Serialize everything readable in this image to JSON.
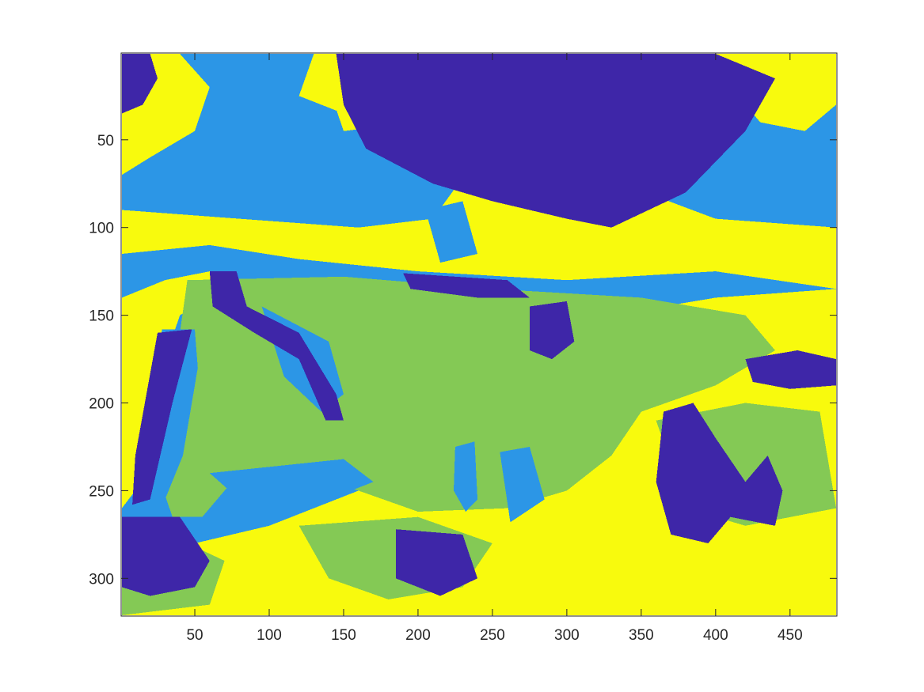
{
  "chart_data": {
    "type": "heatmap",
    "title": "",
    "xlabel": "",
    "ylabel": "",
    "xlim": [
      0.5,
      481.5
    ],
    "ylim": [
      0.5,
      321.5
    ],
    "y_direction": "reverse",
    "x_ticks": [
      50,
      100,
      150,
      200,
      250,
      300,
      350,
      400,
      450
    ],
    "x_tick_labels": [
      "50",
      "100",
      "150",
      "200",
      "250",
      "300",
      "350",
      "400",
      "450"
    ],
    "y_ticks": [
      50,
      100,
      150,
      200,
      250,
      300
    ],
    "y_tick_labels": [
      "50",
      "100",
      "150",
      "200",
      "250",
      "300"
    ],
    "n_classes": 4,
    "class_colors": [
      "#3e26a8",
      "#2c96e6",
      "#84c955",
      "#f8fa0d"
    ],
    "approx_regions": [
      {
        "class": 2,
        "points": [
          [
            1,
            1
          ],
          [
            481,
            1
          ],
          [
            481,
            321
          ],
          [
            1,
            321
          ]
        ]
      },
      {
        "class": 4,
        "points": [
          [
            1,
            1
          ],
          [
            40,
            1
          ],
          [
            60,
            20
          ],
          [
            50,
            45
          ],
          [
            20,
            60
          ],
          [
            1,
            70
          ]
        ]
      },
      {
        "class": 4,
        "points": [
          [
            130,
            1
          ],
          [
            200,
            1
          ],
          [
            210,
            30
          ],
          [
            150,
            35
          ],
          [
            120,
            25
          ]
        ]
      },
      {
        "class": 4,
        "points": [
          [
            140,
            20
          ],
          [
            250,
            20
          ],
          [
            290,
            60
          ],
          [
            400,
            95
          ],
          [
            481,
            100
          ],
          [
            481,
            135
          ],
          [
            400,
            125
          ],
          [
            300,
            130
          ],
          [
            200,
            125
          ],
          [
            120,
            118
          ],
          [
            60,
            110
          ],
          [
            1,
            115
          ],
          [
            1,
            90
          ],
          [
            80,
            95
          ],
          [
            160,
            100
          ],
          [
            210,
            95
          ],
          [
            240,
            60
          ],
          [
            200,
            40
          ],
          [
            150,
            45
          ]
        ]
      },
      {
        "class": 4,
        "points": [
          [
            400,
            1
          ],
          [
            481,
            1
          ],
          [
            481,
            30
          ],
          [
            460,
            45
          ],
          [
            430,
            40
          ],
          [
            410,
            20
          ]
        ]
      },
      {
        "class": 4,
        "points": [
          [
            1,
            140
          ],
          [
            30,
            130
          ],
          [
            60,
            125
          ],
          [
            70,
            135
          ],
          [
            40,
            150
          ],
          [
            20,
            200
          ],
          [
            10,
            250
          ],
          [
            1,
            260
          ]
        ]
      },
      {
        "class": 4,
        "points": [
          [
            330,
            150
          ],
          [
            400,
            140
          ],
          [
            481,
            135
          ],
          [
            481,
            321
          ],
          [
            1,
            321
          ],
          [
            1,
            290
          ],
          [
            50,
            280
          ],
          [
            100,
            270
          ],
          [
            160,
            250
          ],
          [
            230,
            230
          ],
          [
            290,
            210
          ],
          [
            330,
            170
          ]
        ]
      },
      {
        "class": 3,
        "points": [
          [
            45,
            130
          ],
          [
            150,
            128
          ],
          [
            250,
            135
          ],
          [
            350,
            140
          ],
          [
            420,
            150
          ],
          [
            440,
            170
          ],
          [
            400,
            190
          ],
          [
            350,
            205
          ],
          [
            330,
            230
          ],
          [
            300,
            250
          ],
          [
            260,
            260
          ],
          [
            200,
            262
          ],
          [
            160,
            250
          ],
          [
            120,
            240
          ],
          [
            80,
            240
          ],
          [
            55,
            265
          ],
          [
            35,
            265
          ],
          [
            25,
            240
          ],
          [
            35,
            200
          ],
          [
            40,
            160
          ]
        ]
      },
      {
        "class": 3,
        "points": [
          [
            120,
            270
          ],
          [
            200,
            265
          ],
          [
            250,
            280
          ],
          [
            230,
            305
          ],
          [
            180,
            312
          ],
          [
            140,
            300
          ]
        ]
      },
      {
        "class": 3,
        "points": [
          [
            1,
            285
          ],
          [
            40,
            278
          ],
          [
            70,
            290
          ],
          [
            60,
            315
          ],
          [
            1,
            321
          ]
        ]
      },
      {
        "class": 3,
        "points": [
          [
            360,
            210
          ],
          [
            420,
            200
          ],
          [
            470,
            205
          ],
          [
            481,
            260
          ],
          [
            420,
            270
          ],
          [
            380,
            260
          ]
        ]
      },
      {
        "class": 2,
        "points": [
          [
            28,
            158
          ],
          [
            50,
            158
          ],
          [
            52,
            180
          ],
          [
            42,
            230
          ],
          [
            30,
            255
          ],
          [
            12,
            255
          ],
          [
            15,
            220
          ]
        ]
      },
      {
        "class": 2,
        "points": [
          [
            95,
            145
          ],
          [
            140,
            165
          ],
          [
            150,
            195
          ],
          [
            135,
            205
          ],
          [
            110,
            185
          ]
        ]
      },
      {
        "class": 2,
        "points": [
          [
            60,
            240
          ],
          [
            150,
            232
          ],
          [
            170,
            245
          ],
          [
            140,
            255
          ],
          [
            80,
            255
          ]
        ]
      },
      {
        "class": 2,
        "points": [
          [
            225,
            225
          ],
          [
            238,
            222
          ],
          [
            240,
            255
          ],
          [
            232,
            262
          ],
          [
            224,
            250
          ]
        ]
      },
      {
        "class": 2,
        "points": [
          [
            255,
            228
          ],
          [
            275,
            225
          ],
          [
            285,
            255
          ],
          [
            262,
            268
          ]
        ]
      },
      {
        "class": 2,
        "points": [
          [
            205,
            90
          ],
          [
            230,
            85
          ],
          [
            240,
            115
          ],
          [
            215,
            120
          ]
        ]
      },
      {
        "class": 1,
        "points": [
          [
            145,
            1
          ],
          [
            400,
            1
          ],
          [
            440,
            15
          ],
          [
            420,
            45
          ],
          [
            380,
            80
          ],
          [
            330,
            100
          ],
          [
            300,
            95
          ],
          [
            250,
            85
          ],
          [
            210,
            75
          ],
          [
            165,
            55
          ],
          [
            150,
            30
          ]
        ]
      },
      {
        "class": 1,
        "points": [
          [
            1,
            1
          ],
          [
            20,
            1
          ],
          [
            25,
            15
          ],
          [
            15,
            30
          ],
          [
            1,
            35
          ]
        ]
      },
      {
        "class": 1,
        "points": [
          [
            60,
            125
          ],
          [
            78,
            125
          ],
          [
            85,
            145
          ],
          [
            120,
            160
          ],
          [
            145,
            195
          ],
          [
            150,
            210
          ],
          [
            138,
            210
          ],
          [
            120,
            175
          ],
          [
            90,
            160
          ],
          [
            62,
            145
          ]
        ]
      },
      {
        "class": 1,
        "points": [
          [
            25,
            160
          ],
          [
            48,
            158
          ],
          [
            35,
            200
          ],
          [
            20,
            255
          ],
          [
            8,
            258
          ],
          [
            10,
            230
          ]
        ]
      },
      {
        "class": 1,
        "points": [
          [
            275,
            145
          ],
          [
            300,
            142
          ],
          [
            305,
            165
          ],
          [
            290,
            175
          ],
          [
            275,
            170
          ]
        ]
      },
      {
        "class": 1,
        "points": [
          [
            365,
            205
          ],
          [
            385,
            200
          ],
          [
            400,
            220
          ],
          [
            420,
            245
          ],
          [
            435,
            230
          ],
          [
            445,
            250
          ],
          [
            440,
            270
          ],
          [
            410,
            265
          ],
          [
            395,
            280
          ],
          [
            370,
            275
          ],
          [
            360,
            245
          ]
        ]
      },
      {
        "class": 1,
        "points": [
          [
            1,
            265
          ],
          [
            40,
            265
          ],
          [
            60,
            290
          ],
          [
            50,
            305
          ],
          [
            20,
            310
          ],
          [
            1,
            305
          ]
        ]
      },
      {
        "class": 1,
        "points": [
          [
            185,
            272
          ],
          [
            230,
            275
          ],
          [
            240,
            300
          ],
          [
            215,
            310
          ],
          [
            185,
            300
          ]
        ]
      },
      {
        "class": 1,
        "points": [
          [
            420,
            175
          ],
          [
            455,
            170
          ],
          [
            481,
            175
          ],
          [
            481,
            190
          ],
          [
            450,
            192
          ],
          [
            425,
            188
          ]
        ]
      },
      {
        "class": 1,
        "points": [
          [
            190,
            126
          ],
          [
            260,
            130
          ],
          [
            275,
            140
          ],
          [
            240,
            140
          ],
          [
            195,
            135
          ]
        ]
      }
    ]
  }
}
